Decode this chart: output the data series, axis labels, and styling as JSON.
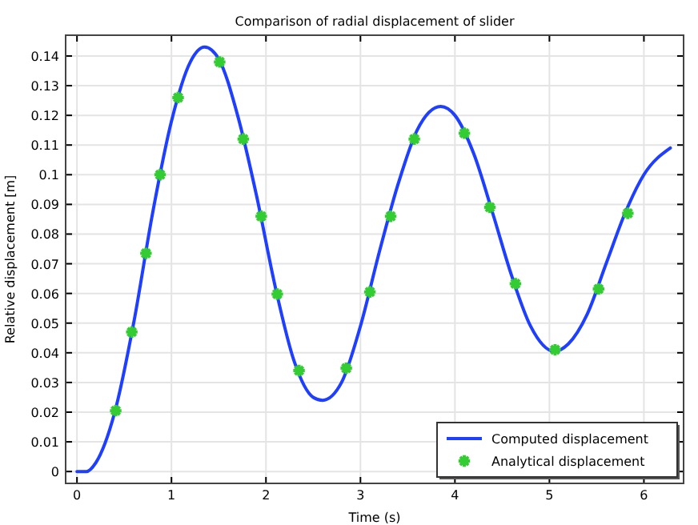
{
  "chart_data": {
    "type": "line",
    "title": "Comparison of radial displacement of slider",
    "xlabel": "Time (s)",
    "ylabel": "Relative displacement [m]",
    "xlim": [
      -0.12,
      6.42
    ],
    "ylim": [
      -0.004,
      0.147
    ],
    "xticks": [
      0,
      1,
      2,
      3,
      4,
      5,
      6
    ],
    "yticks": [
      0,
      0.01,
      0.02,
      0.03,
      0.04,
      0.05,
      0.06,
      0.07,
      0.08,
      0.09,
      0.1,
      0.11,
      0.12,
      0.13,
      0.14
    ],
    "grid": true,
    "legend": "bottom right",
    "series": [
      {
        "name": "Computed displacement",
        "color": "#1f3fff",
        "marker": "none",
        "line_style": "solid",
        "x": [
          0,
          0.1,
          0.2,
          0.4,
          0.6,
          0.8,
          1.0,
          1.2,
          1.35,
          1.5,
          1.7,
          1.9,
          2.1,
          2.3,
          2.5,
          2.6,
          2.8,
          3.0,
          3.2,
          3.4,
          3.6,
          3.85,
          4.0,
          4.2,
          4.4,
          4.6,
          4.8,
          5.05,
          5.2,
          5.4,
          5.6,
          5.8,
          6.0,
          6.28
        ],
        "values": [
          0,
          0,
          0.003,
          0.02,
          0.05,
          0.087,
          0.118,
          0.138,
          0.143,
          0.139,
          0.12,
          0.093,
          0.062,
          0.037,
          0.025,
          0.024,
          0.03,
          0.049,
          0.074,
          0.097,
          0.115,
          0.123,
          0.12,
          0.107,
          0.087,
          0.066,
          0.049,
          0.0405,
          0.043,
          0.053,
          0.07,
          0.087,
          0.1,
          0.109
        ]
      },
      {
        "name": "Analytical displacement",
        "type": "scatter",
        "color": "#33cc33",
        "marker": "cross",
        "x": [
          0.41,
          0.58,
          0.73,
          0.88,
          1.07,
          1.51,
          1.76,
          1.95,
          2.12,
          2.35,
          2.85,
          3.1,
          3.32,
          3.57,
          4.1,
          4.37,
          4.64,
          5.06,
          5.52,
          5.83
        ],
        "values": [
          0.0205,
          0.047,
          0.0735,
          0.1,
          0.126,
          0.138,
          0.112,
          0.086,
          0.0598,
          0.034,
          0.0348,
          0.0605,
          0.086,
          0.112,
          0.114,
          0.089,
          0.0633,
          0.041,
          0.0615,
          0.087
        ]
      }
    ]
  }
}
